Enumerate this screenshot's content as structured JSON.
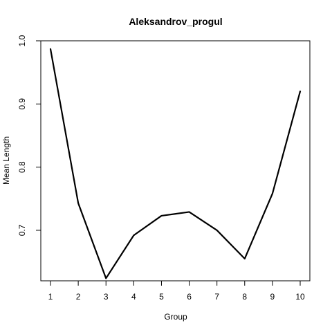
{
  "chart_data": {
    "type": "line",
    "title": "Aleksandrov_progul",
    "xlabel": "Group",
    "ylabel": "Mean Length",
    "x": [
      1,
      2,
      3,
      4,
      5,
      6,
      7,
      8,
      9,
      10
    ],
    "xticks": [
      "1",
      "2",
      "3",
      "4",
      "5",
      "6",
      "7",
      "8",
      "9",
      "10"
    ],
    "yticks": [
      "0.7",
      "0.8",
      "0.9",
      "1.0"
    ],
    "series": [
      {
        "values": [
          0.987,
          0.743,
          0.624,
          0.692,
          0.723,
          0.729,
          0.7,
          0.655,
          0.758,
          0.92
        ],
        "color": "#000000"
      }
    ],
    "xlim": [
      1,
      10
    ],
    "ylim": [
      0.62,
      1.0
    ],
    "grid": false,
    "legend": "none"
  }
}
